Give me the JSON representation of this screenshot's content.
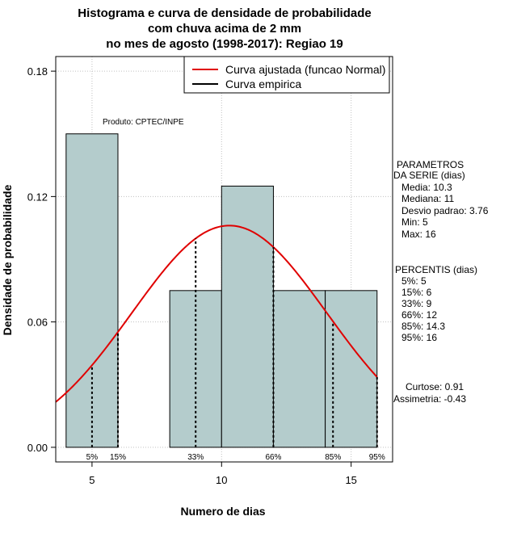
{
  "chart_data": {
    "type": "bar",
    "title": [
      "Histograma e curva de densidade de probabilidade",
      "com chuva acima de 2 mm",
      "no mes de agosto (1998-2017): Regiao 19"
    ],
    "xlabel": "Numero de dias",
    "ylabel": "Densidade de probabilidade",
    "xlim": [
      3.6,
      16.6
    ],
    "ylim": [
      -0.007,
      0.187
    ],
    "x_ticks": [
      5,
      10,
      15
    ],
    "y_ticks": [
      0.0,
      0.06,
      0.12,
      0.18
    ],
    "y_tick_labels": [
      "0.00",
      "0.06",
      "0.12",
      "0.18"
    ],
    "bins": [
      {
        "from": 4,
        "to": 6,
        "density": 0.15
      },
      {
        "from": 6,
        "to": 8,
        "density": 0.0
      },
      {
        "from": 8,
        "to": 10,
        "density": 0.075
      },
      {
        "from": 10,
        "to": 12,
        "density": 0.125
      },
      {
        "from": 12,
        "to": 14,
        "density": 0.075
      },
      {
        "from": 14,
        "to": 16,
        "density": 0.075
      }
    ],
    "bar_fill": "#b4cccc",
    "fitted_curve": {
      "name": "Curva ajustada (funcao Normal)",
      "mean": 10.3,
      "sd": 3.76,
      "color": "#e00000"
    },
    "empirical_curve": {
      "name": "Curva empirica",
      "color": "#000000"
    },
    "percentiles": [
      {
        "label": "5%",
        "x": 5
      },
      {
        "label": "15%",
        "x": 6
      },
      {
        "label": "33%",
        "x": 9
      },
      {
        "label": "66%",
        "x": 12
      },
      {
        "label": "85%",
        "x": 14.3
      },
      {
        "label": "95%",
        "x": 16
      }
    ],
    "grid": true,
    "legend_position": "top-right"
  },
  "annotation": "Produto: CPTEC/INPE",
  "parametros": {
    "heading": [
      "PARAMETROS",
      "DA SERIE (dias)"
    ],
    "items": [
      "Media: 10.3",
      "Mediana: 11",
      "Desvio padrao: 3.76",
      "Min: 5",
      "Max: 16"
    ]
  },
  "percentis": {
    "heading": "PERCENTIS (dias)",
    "items": [
      "5%: 5",
      "15%: 6",
      "33%: 9",
      "66%: 12",
      "85%: 14.3",
      "95%: 16"
    ]
  },
  "estatisticas": [
    "Curtose: 0.91",
    "Assimetria: -0.43"
  ]
}
